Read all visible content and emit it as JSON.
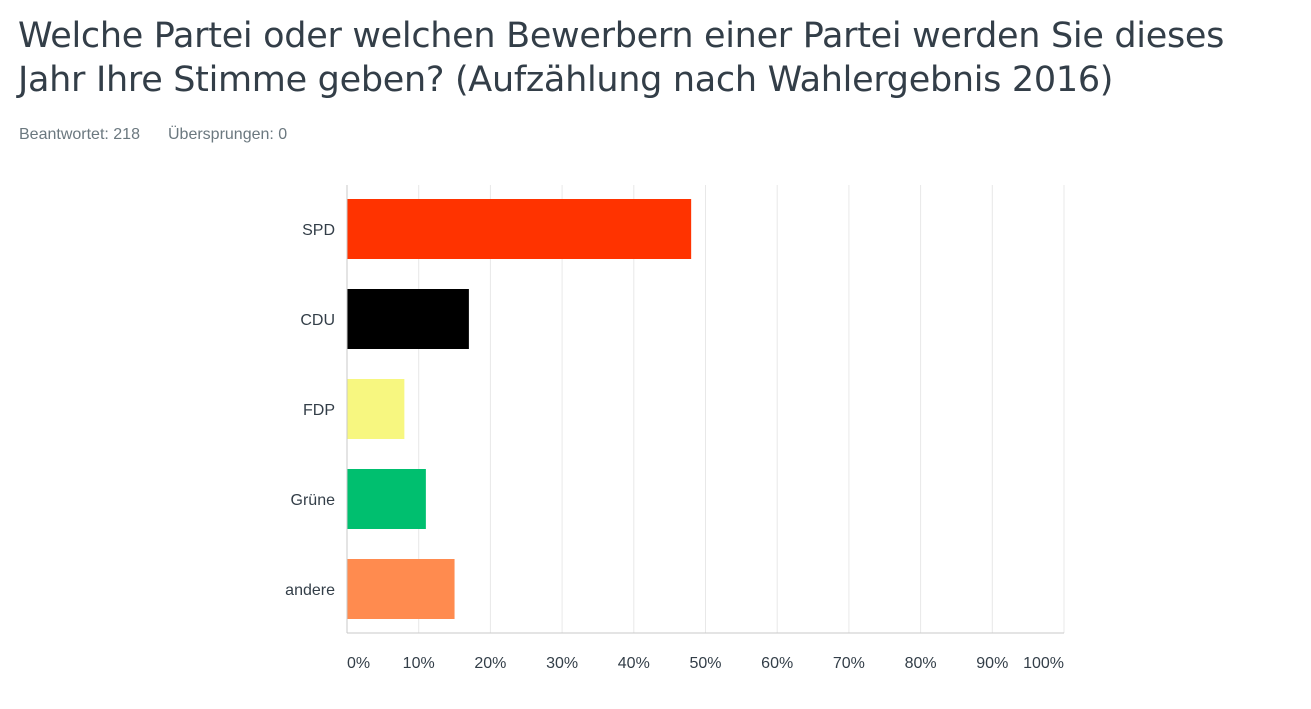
{
  "question": {
    "title": "Welche Partei oder welchen Bewerbern einer Partei werden Sie dieses Jahr Ihre Stimme geben? (Aufzählung nach Wahlergebnis 2016)"
  },
  "stats": {
    "answered_label": "Beantwortet:",
    "answered_count": "218",
    "skipped_label": "Übersprungen:",
    "skipped_count": "0"
  },
  "chart_data": {
    "type": "bar",
    "orientation": "horizontal",
    "categories": [
      "SPD",
      "CDU",
      "FDP",
      "Grüne",
      "andere"
    ],
    "values": [
      48,
      17,
      8,
      11,
      15
    ],
    "colors": [
      "#ff3300",
      "#000000",
      "#f7f780",
      "#00bf6f",
      "#ff8b4f"
    ],
    "xlim": [
      0,
      100
    ],
    "x_ticks": [
      "0%",
      "10%",
      "20%",
      "30%",
      "40%",
      "50%",
      "60%",
      "70%",
      "80%",
      "90%",
      "100%"
    ],
    "grid": true,
    "legend": "none"
  }
}
